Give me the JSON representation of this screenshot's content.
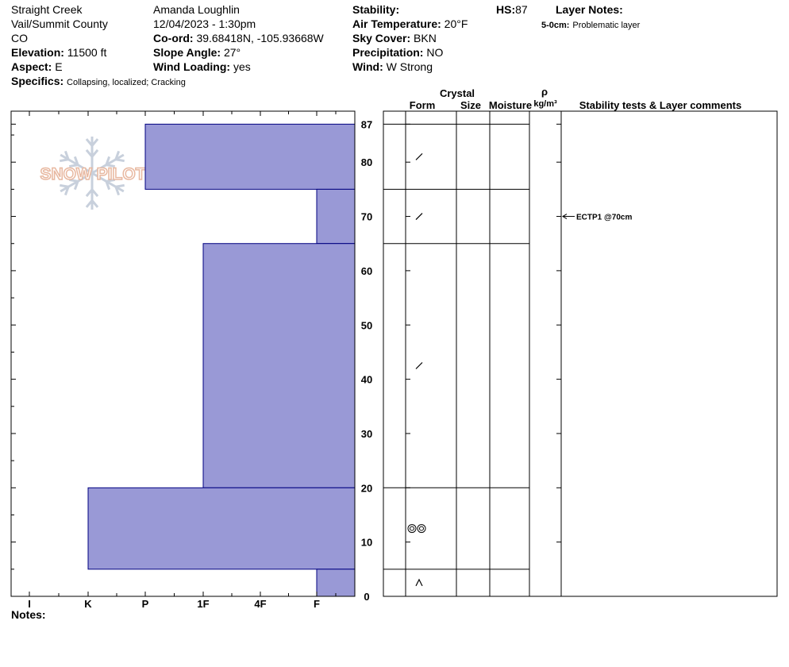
{
  "header": {
    "location": "Straight Creek",
    "region": "Vail/Summit County",
    "state": "CO",
    "elevation_label": "Elevation:",
    "elevation": "11500 ft",
    "aspect_label": "Aspect:",
    "aspect": "E",
    "specifics_label": "Specifics:",
    "specifics": "Collapsing, localized;  Cracking",
    "observer": "Amanda Loughlin",
    "datetime": "12/04/2023 - 1:30pm",
    "coord_label": "Co-ord:",
    "coord": "39.68418N, -105.93668W",
    "slope_label": "Slope Angle:",
    "slope": "27°",
    "wind_loading_label": "Wind Loading:",
    "wind_loading": "yes",
    "stability_label": "Stability:",
    "air_temp_label": "Air Temperature:",
    "air_temp": "20°F",
    "sky_label": "Sky Cover:",
    "sky": "BKN",
    "precip_label": "Precipitation:",
    "precip": "NO",
    "wind_label": "Wind:",
    "wind": "W Strong",
    "hs_label": "HS:",
    "hs": "87",
    "layer_notes_label": "Layer Notes:",
    "layer_note_depth": "5-0cm:",
    "layer_note_text": "Problematic layer",
    "notes_label": "Notes:",
    "logo_text": "SNOW PILOT"
  },
  "colors": {
    "hardness_fill": "#9999d6",
    "hardness_stroke": "#000080",
    "logo": "#e8b8a0",
    "snowflake": "#c8d0dc"
  },
  "chart_data": {
    "type": "bar",
    "hardness_scale": [
      "I",
      "K",
      "P",
      "1F",
      "4F",
      "F"
    ],
    "depth_ticks": [
      0,
      10,
      20,
      30,
      40,
      50,
      60,
      70,
      80,
      87
    ],
    "depth_max": 87,
    "layers": [
      {
        "top": 87,
        "bottom": 75,
        "hardness": "P"
      },
      {
        "top": 75,
        "bottom": 65,
        "hardness": "F"
      },
      {
        "top": 65,
        "bottom": 20,
        "hardness": "1F"
      },
      {
        "top": 20,
        "bottom": 5,
        "hardness": "K"
      },
      {
        "top": 5,
        "bottom": 0,
        "hardness": "F"
      }
    ],
    "crystal_forms": [
      {
        "depth": 81,
        "form": "decomposing-fragments"
      },
      {
        "depth": 70,
        "form": "decomposing-fragments"
      },
      {
        "depth": 42.5,
        "form": "decomposing-fragments"
      },
      {
        "depth": 12.5,
        "form": "melt-forms"
      },
      {
        "depth": 2.5,
        "form": "depth-hoar"
      }
    ],
    "column_headers": {
      "crystal": "Crystal",
      "form": "Form",
      "size": "Size",
      "moisture": "Moisture",
      "rho": "ρ",
      "density_unit": "kg/m³",
      "comments": "Stability tests & Layer comments"
    },
    "stability_tests": [
      {
        "depth": 70,
        "label": "ECTP1 @70cm"
      }
    ]
  }
}
